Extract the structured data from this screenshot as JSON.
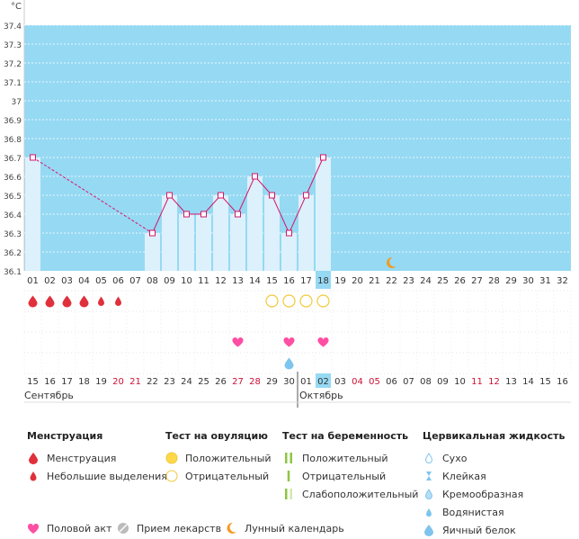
{
  "chart": {
    "unit": "°C",
    "y_ticks": [
      "37.4",
      "37.3",
      "37.2",
      "37.1",
      "37",
      "36.9",
      "36.8",
      "36.7",
      "36.6",
      "36.5",
      "36.4",
      "36.3",
      "36.2",
      "36.1"
    ],
    "cycle_days": [
      "01",
      "02",
      "03",
      "04",
      "05",
      "06",
      "07",
      "08",
      "09",
      "10",
      "11",
      "12",
      "13",
      "14",
      "15",
      "16",
      "17",
      "18",
      "19",
      "20",
      "21",
      "22",
      "23",
      "24",
      "25",
      "26",
      "27",
      "28",
      "29",
      "30",
      "31",
      "32"
    ],
    "today_index": 17,
    "temperatures": [
      36.7,
      null,
      null,
      null,
      null,
      null,
      null,
      36.3,
      36.5,
      36.4,
      36.4,
      36.5,
      36.4,
      36.6,
      36.5,
      36.3,
      36.5,
      36.7
    ],
    "moon_index": 21,
    "menstruation": [
      "big",
      "big",
      "big",
      "big",
      "small",
      "small",
      null
    ],
    "ovulation_negative": [
      14,
      15,
      16,
      17
    ],
    "intercourse": [
      12,
      15,
      17
    ],
    "fluid_watery": [
      15
    ],
    "dates": [
      {
        "label": "15",
        "weekend": false
      },
      {
        "label": "16",
        "weekend": false
      },
      {
        "label": "17",
        "weekend": false
      },
      {
        "label": "18",
        "weekend": false
      },
      {
        "label": "19",
        "weekend": false
      },
      {
        "label": "20",
        "weekend": true
      },
      {
        "label": "21",
        "weekend": true
      },
      {
        "label": "22",
        "weekend": false
      },
      {
        "label": "23",
        "weekend": false
      },
      {
        "label": "24",
        "weekend": false
      },
      {
        "label": "25",
        "weekend": false
      },
      {
        "label": "26",
        "weekend": false
      },
      {
        "label": "27",
        "weekend": true
      },
      {
        "label": "28",
        "weekend": true
      },
      {
        "label": "29",
        "weekend": false
      },
      {
        "label": "30",
        "weekend": false
      },
      {
        "label": "01",
        "weekend": false
      },
      {
        "label": "02",
        "weekend": false
      },
      {
        "label": "03",
        "weekend": false
      },
      {
        "label": "04",
        "weekend": true
      },
      {
        "label": "05",
        "weekend": true
      },
      {
        "label": "06",
        "weekend": false
      },
      {
        "label": "07",
        "weekend": false
      },
      {
        "label": "08",
        "weekend": false
      },
      {
        "label": "09",
        "weekend": false
      },
      {
        "label": "10",
        "weekend": false
      },
      {
        "label": "11",
        "weekend": true
      },
      {
        "label": "12",
        "weekend": true
      },
      {
        "label": "13",
        "weekend": false
      },
      {
        "label": "14",
        "weekend": false
      },
      {
        "label": "15",
        "weekend": false
      },
      {
        "label": "16",
        "weekend": false
      }
    ],
    "month_start": "Сентябрь",
    "month_next": "Октябрь",
    "month_next_index": 16,
    "colors": {
      "bg": "#96d9f3",
      "bar": "#dcf1fb",
      "line": "#d6166a",
      "menses": "#e0303b",
      "heart": "#ff4fa3",
      "ovul_pos": "#ffd84a",
      "ovul_neg": "#f0c93a",
      "moon": "#f39a1e",
      "drop": "#7ec4ee",
      "weekend": "#cc1133",
      "today": "#96d9f3"
    }
  },
  "legend": {
    "menstruation": {
      "title": "Менструация",
      "items": [
        "Менструация",
        "Небольшие выделения"
      ]
    },
    "ovulation": {
      "title": "Тест на овуляцию",
      "items": [
        "Положительный",
        "Отрицательный"
      ]
    },
    "pregnancy": {
      "title": "Тест на беременность",
      "items": [
        "Положительный",
        "Отрицательный",
        "Слабоположительный"
      ]
    },
    "fluid": {
      "title": "Цервикальная жидкость",
      "items": [
        "Сухо",
        "Клейкая",
        "Кремообразная",
        "Водянистая",
        "Яичный белок"
      ]
    },
    "bottom": {
      "intercourse": "Половой акт",
      "medication": "Прием лекарств",
      "lunar": "Лунный календарь"
    }
  }
}
